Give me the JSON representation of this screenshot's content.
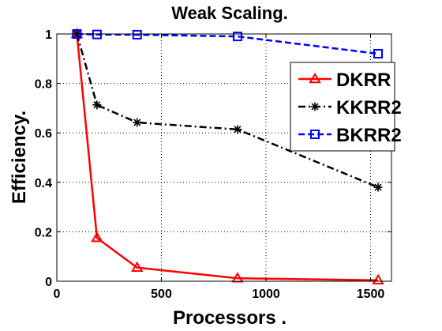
{
  "chart_data": {
    "type": "line",
    "title": "Weak Scaling.",
    "xlabel": "Processors .",
    "ylabel": "Efficiency.",
    "xlim": [
      0,
      1600
    ],
    "ylim": [
      0,
      1
    ],
    "xticks": [
      0,
      500,
      1000,
      1500
    ],
    "yticks": [
      0,
      0.2,
      0.4,
      0.6,
      0.8,
      1
    ],
    "xtick_labels": [
      "0",
      "500",
      "1000",
      "1500"
    ],
    "ytick_labels": [
      "0",
      "0.2",
      "0.4",
      "0.6",
      "0.8",
      "1"
    ],
    "grid": true,
    "legend_position": "top-right",
    "series": [
      {
        "name": "DKRR",
        "color": "#ff0000",
        "line_style": "solid",
        "marker": "triangle",
        "x": [
          96,
          192,
          384,
          864,
          1536
        ],
        "y": [
          1.0,
          0.175,
          0.055,
          0.012,
          0.004
        ]
      },
      {
        "name": "KKRR2",
        "color": "#000000",
        "line_style": "dashdot",
        "marker": "star",
        "x": [
          96,
          192,
          384,
          864,
          1536
        ],
        "y": [
          1.0,
          0.713,
          0.642,
          0.614,
          0.38
        ]
      },
      {
        "name": "BKRR2",
        "color": "#0000ff",
        "line_style": "dashed",
        "marker": "square",
        "x": [
          96,
          192,
          384,
          864,
          1536
        ],
        "y": [
          1.0,
          0.998,
          0.997,
          0.99,
          0.92
        ]
      }
    ]
  }
}
